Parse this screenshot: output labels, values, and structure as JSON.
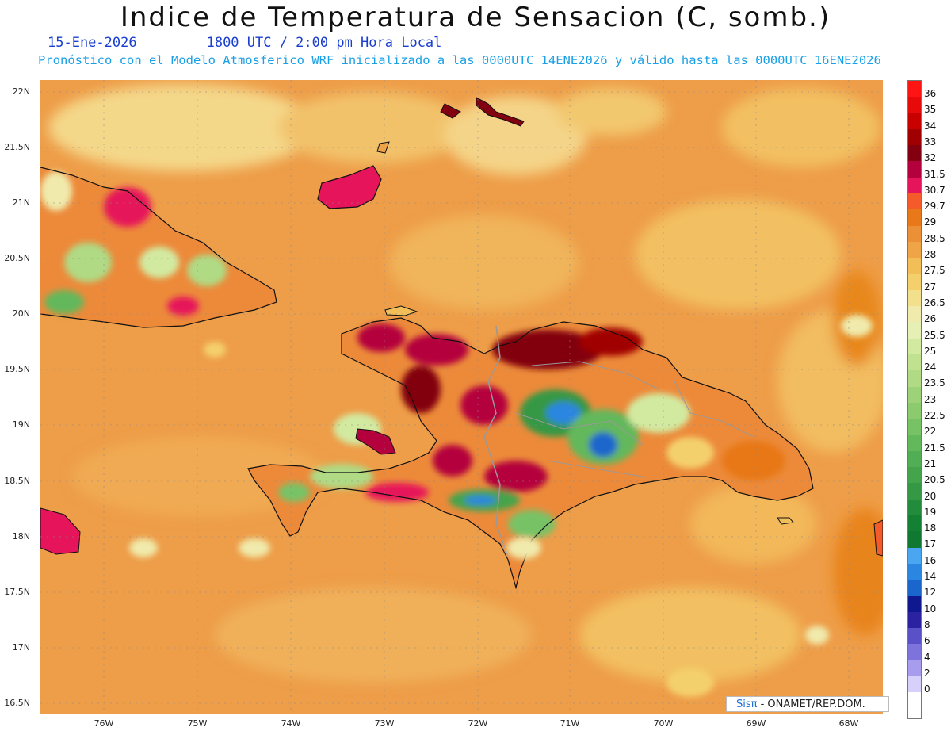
{
  "header": {
    "title": "Indice de Temperatura de Sensacion (C, somb.)",
    "date": "15-Ene-2026",
    "time": "1800 UTC / 2:00 pm Hora Local",
    "model_note": "Pronóstico con el Modelo Atmosferico WRF inicializado a las 0000UTC_14ENE2026 y válido hasta las  0000UTC_16ENE2026"
  },
  "axes": {
    "lat_labels": [
      "22N",
      "21.5N",
      "21N",
      "20.5N",
      "20N",
      "19.5N",
      "19N",
      "18.5N",
      "18N",
      "17.5N",
      "17N",
      "16.5N"
    ],
    "lon_labels": [
      "76W",
      "75W",
      "74W",
      "73W",
      "72W",
      "71W",
      "70W",
      "69W",
      "68W"
    ]
  },
  "legend": {
    "values": [
      "36",
      "35",
      "34",
      "33",
      "32",
      "31.5",
      "30.7",
      "29.7",
      "29",
      "28.5",
      "28",
      "27.5",
      "27",
      "26.5",
      "26",
      "25.5",
      "25",
      "24",
      "23.5",
      "23",
      "22.5",
      "22",
      "21.5",
      "21",
      "20.5",
      "20",
      "19",
      "18",
      "17",
      "16",
      "14",
      "12",
      "10",
      "8",
      "6",
      "4",
      "2",
      "0"
    ],
    "colors": [
      "#ff1414",
      "#e60a0a",
      "#c80000",
      "#a00000",
      "#820010",
      "#b4003c",
      "#e6145a",
      "#f55a2a",
      "#e87818",
      "#ec9038",
      "#f0a448",
      "#f2be58",
      "#f4d06c",
      "#f2e08c",
      "#f0eaac",
      "#e6f0b4",
      "#d2eaa0",
      "#c0e290",
      "#b0da84",
      "#9ed278",
      "#8cca6e",
      "#78c266",
      "#64b85c",
      "#52ae54",
      "#44a44c",
      "#349844",
      "#228c3c",
      "#148034",
      "#107830",
      "#4aa6f0",
      "#2a86e0",
      "#1a66cc",
      "#101890",
      "#2a22a0",
      "#5a50c8",
      "#7e72dc",
      "#a89cee",
      "#d6d0fa"
    ]
  },
  "credit": {
    "brand": "Sisπ",
    "text": " - ONAMET/REP.DOM."
  }
}
